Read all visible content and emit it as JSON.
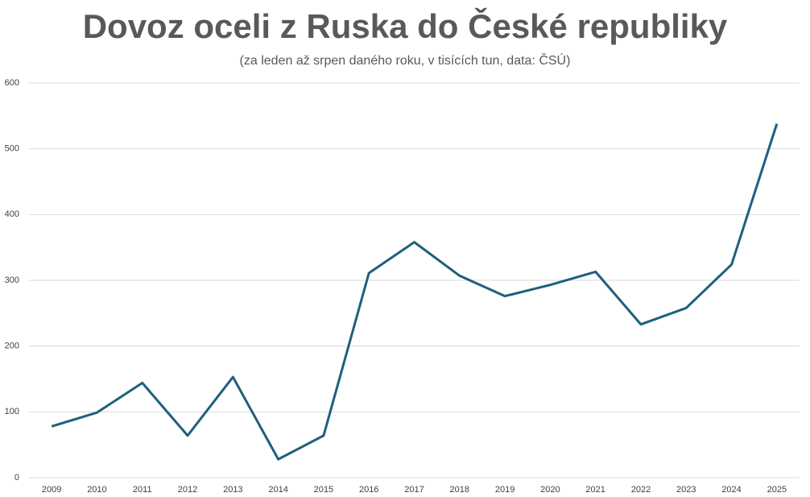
{
  "chart_data": {
    "type": "line",
    "title": "Dovoz oceli z Ruska do České republiky",
    "subtitle": "(za leden až srpen daného roku, v tisících tun, data: ČSÚ)",
    "categories": [
      "2009",
      "2010",
      "2011",
      "2012",
      "2013",
      "2014",
      "2015",
      "2016",
      "2017",
      "2018",
      "2019",
      "2020",
      "2021",
      "2022",
      "2023",
      "2024",
      "2025"
    ],
    "values": [
      78,
      99,
      144,
      64,
      153,
      28,
      64,
      311,
      358,
      307,
      276,
      293,
      313,
      233,
      258,
      324,
      538
    ],
    "color": "#1f5f7d",
    "ylim": [
      0,
      600
    ],
    "yticks": [
      0,
      100,
      200,
      300,
      400,
      500,
      600
    ],
    "grid": true
  }
}
